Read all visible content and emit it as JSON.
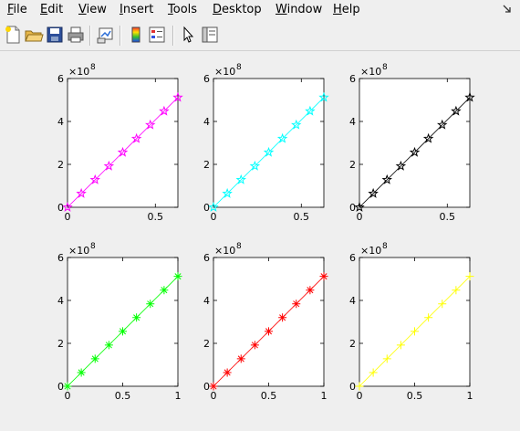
{
  "menu": {
    "items": [
      {
        "label": "File",
        "key": "F"
      },
      {
        "label": "Edit",
        "key": "E"
      },
      {
        "label": "View",
        "key": "V"
      },
      {
        "label": "Insert",
        "key": "I"
      },
      {
        "label": "Tools",
        "key": "T"
      },
      {
        "label": "Desktop",
        "key": "D"
      },
      {
        "label": "Window",
        "key": "W"
      },
      {
        "label": "Help",
        "key": "H"
      }
    ]
  },
  "toolbar": {
    "buttons": [
      {
        "name": "new-figure-icon"
      },
      {
        "name": "open-file-icon"
      },
      {
        "name": "save-icon"
      },
      {
        "name": "print-icon"
      },
      {
        "name": "link-plot-icon"
      },
      {
        "name": "colorbar-icon"
      },
      {
        "name": "legend-icon"
      },
      {
        "name": "pointer-icon"
      },
      {
        "name": "plot-tools-icon"
      }
    ]
  },
  "chart_data": [
    {
      "type": "line",
      "marker": "pentagram",
      "color": "#ff00ff",
      "x": [
        0,
        0.0785,
        0.157,
        0.2356,
        0.3142,
        0.3927,
        0.4712,
        0.5498,
        0.6283
      ],
      "y": [
        0,
        0.64,
        1.28,
        1.92,
        2.56,
        3.2,
        3.84,
        4.48,
        5.12
      ],
      "y_exponent_label": "×10",
      "y_exponent": "8",
      "xlim": [
        0,
        0.6283
      ],
      "ylim": [
        0,
        6
      ],
      "xticks": [
        0,
        0.5
      ],
      "xtick_labels": [
        "0",
        "0.5"
      ],
      "yticks": [
        0,
        2,
        4,
        6
      ],
      "ytick_labels": [
        "0",
        "2",
        "4",
        "6"
      ]
    },
    {
      "type": "line",
      "marker": "pentagram",
      "color": "#00ffff",
      "x": [
        0,
        0.0785,
        0.157,
        0.2356,
        0.3142,
        0.3927,
        0.4712,
        0.5498,
        0.6283
      ],
      "y": [
        0,
        0.64,
        1.28,
        1.92,
        2.56,
        3.2,
        3.84,
        4.48,
        5.12
      ],
      "y_exponent_label": "×10",
      "y_exponent": "8",
      "xlim": [
        0,
        0.6283
      ],
      "ylim": [
        0,
        6
      ],
      "xticks": [
        0,
        0.5
      ],
      "xtick_labels": [
        "0",
        "0.5"
      ],
      "yticks": [
        0,
        2,
        4,
        6
      ],
      "ytick_labels": [
        "0",
        "2",
        "4",
        "6"
      ]
    },
    {
      "type": "line",
      "marker": "pentagram",
      "color": "#000000",
      "x": [
        0,
        0.0785,
        0.157,
        0.2356,
        0.3142,
        0.3927,
        0.4712,
        0.5498,
        0.6283
      ],
      "y": [
        0,
        0.64,
        1.28,
        1.92,
        2.56,
        3.2,
        3.84,
        4.48,
        5.12
      ],
      "y_exponent_label": "×10",
      "y_exponent": "8",
      "xlim": [
        0,
        0.6283
      ],
      "ylim": [
        0,
        6
      ],
      "xticks": [
        0,
        0.5
      ],
      "xtick_labels": [
        "0",
        "0.5"
      ],
      "yticks": [
        0,
        2,
        4,
        6
      ],
      "ytick_labels": [
        "0",
        "2",
        "4",
        "6"
      ]
    },
    {
      "type": "line",
      "marker": "asterisk",
      "color": "#00ff00",
      "x": [
        0,
        0.125,
        0.25,
        0.375,
        0.5,
        0.625,
        0.75,
        0.875,
        1
      ],
      "y": [
        0,
        0.64,
        1.28,
        1.92,
        2.56,
        3.2,
        3.84,
        4.48,
        5.12
      ],
      "y_exponent_label": "×10",
      "y_exponent": "8",
      "xlim": [
        0,
        1
      ],
      "ylim": [
        0,
        6
      ],
      "xticks": [
        0,
        0.5,
        1
      ],
      "xtick_labels": [
        "0",
        "0.5",
        "1"
      ],
      "yticks": [
        0,
        2,
        4,
        6
      ],
      "ytick_labels": [
        "0",
        "2",
        "4",
        "6"
      ]
    },
    {
      "type": "line",
      "marker": "asterisk",
      "color": "#ff0000",
      "x": [
        0,
        0.125,
        0.25,
        0.375,
        0.5,
        0.625,
        0.75,
        0.875,
        1
      ],
      "y": [
        0,
        0.64,
        1.28,
        1.92,
        2.56,
        3.2,
        3.84,
        4.48,
        5.12
      ],
      "y_exponent_label": "×10",
      "y_exponent": "8",
      "xlim": [
        0,
        1
      ],
      "ylim": [
        0,
        6
      ],
      "xticks": [
        0,
        0.5,
        1
      ],
      "xtick_labels": [
        "0",
        "0.5",
        "1"
      ],
      "yticks": [
        0,
        2,
        4,
        6
      ],
      "ytick_labels": [
        "0",
        "2",
        "4",
        "6"
      ]
    },
    {
      "type": "line",
      "marker": "plus",
      "color": "#ffff00",
      "x": [
        0,
        0.125,
        0.25,
        0.375,
        0.5,
        0.625,
        0.75,
        0.875,
        1
      ],
      "y": [
        0,
        0.64,
        1.28,
        1.92,
        2.56,
        3.2,
        3.84,
        4.48,
        5.12
      ],
      "y_exponent_label": "×10",
      "y_exponent": "8",
      "xlim": [
        0,
        1
      ],
      "ylim": [
        0,
        6
      ],
      "xticks": [
        0,
        0.5,
        1
      ],
      "xtick_labels": [
        "0",
        "0.5",
        "1"
      ],
      "yticks": [
        0,
        2,
        4,
        6
      ],
      "ytick_labels": [
        "0",
        "2",
        "4",
        "6"
      ]
    }
  ]
}
